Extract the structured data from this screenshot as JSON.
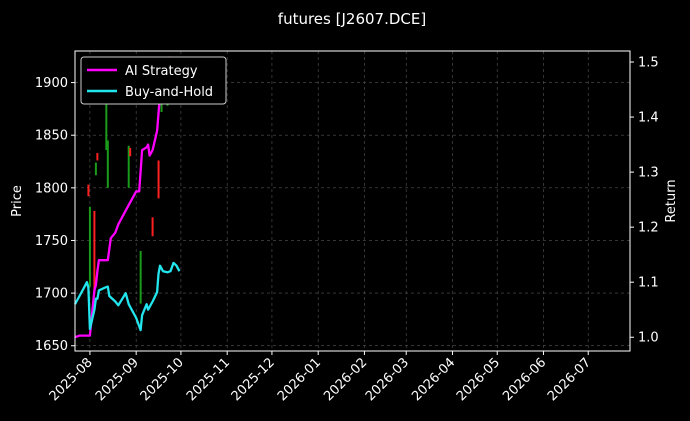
{
  "chart_data": {
    "type": "line",
    "title": "futures [J2607.DCE]",
    "ylabel_left": "Price",
    "ylabel_right": "Return",
    "x_ticks": [
      "2025-08",
      "2025-09",
      "2025-10",
      "2025-11",
      "2025-12",
      "2026-01",
      "2026-02",
      "2026-03",
      "2026-04",
      "2026-05",
      "2026-06",
      "2026-07"
    ],
    "x_range": [
      "2025-07-22",
      "2026-07-29"
    ],
    "y_left_range": [
      1645,
      1930
    ],
    "y_left_ticks": [
      1650,
      1700,
      1750,
      1800,
      1850,
      1900
    ],
    "y_right_range": [
      0.975,
      1.52
    ],
    "y_right_ticks": [
      1.0,
      1.1,
      1.2,
      1.3,
      1.4,
      1.5
    ],
    "grid": true,
    "legend_position": "top-left",
    "colors": {
      "background": "#000000",
      "ai_strategy": "#ff00ff",
      "buy_and_hold": "#22e5ee",
      "candle_up": "#ff2020",
      "candle_down": "#1a9c1a",
      "grid": "#555555"
    },
    "series": [
      {
        "name": "AI Strategy",
        "axis": "right",
        "points": [
          [
            "2025-07-22",
            1.0
          ],
          [
            "2025-07-25",
            1.003
          ],
          [
            "2025-08-01",
            1.003
          ],
          [
            "2025-08-04",
            1.085
          ],
          [
            "2025-08-05",
            1.095
          ],
          [
            "2025-08-06",
            1.12
          ],
          [
            "2025-08-07",
            1.14
          ],
          [
            "2025-08-13",
            1.14
          ],
          [
            "2025-08-14",
            1.16
          ],
          [
            "2025-08-15",
            1.18
          ],
          [
            "2025-08-18",
            1.19
          ],
          [
            "2025-08-20",
            1.205
          ],
          [
            "2025-08-25",
            1.23
          ],
          [
            "2025-08-27",
            1.24
          ],
          [
            "2025-09-01",
            1.265
          ],
          [
            "2025-09-03",
            1.265
          ],
          [
            "2025-09-05",
            1.34
          ],
          [
            "2025-09-08",
            1.345
          ],
          [
            "2025-09-09",
            1.35
          ],
          [
            "2025-09-10",
            1.33
          ],
          [
            "2025-09-12",
            1.34
          ],
          [
            "2025-09-15",
            1.375
          ],
          [
            "2025-09-17",
            1.44
          ],
          [
            "2025-09-19",
            1.48
          ],
          [
            "2025-09-22",
            1.49
          ],
          [
            "2025-09-24",
            1.51
          ]
        ]
      },
      {
        "name": "Buy-and-Hold",
        "axis": "right",
        "points": [
          [
            "2025-07-22",
            1.06
          ],
          [
            "2025-07-25",
            1.075
          ],
          [
            "2025-07-28",
            1.09
          ],
          [
            "2025-07-30",
            1.1
          ],
          [
            "2025-07-31",
            1.09
          ],
          [
            "2025-08-01",
            1.015
          ],
          [
            "2025-08-04",
            1.05
          ],
          [
            "2025-08-05",
            1.07
          ],
          [
            "2025-08-06",
            1.07
          ],
          [
            "2025-08-07",
            1.085
          ],
          [
            "2025-08-11",
            1.09
          ],
          [
            "2025-08-13",
            1.092
          ],
          [
            "2025-08-14",
            1.075
          ],
          [
            "2025-08-18",
            1.065
          ],
          [
            "2025-08-20",
            1.058
          ],
          [
            "2025-08-25",
            1.08
          ],
          [
            "2025-08-27",
            1.06
          ],
          [
            "2025-09-01",
            1.035
          ],
          [
            "2025-09-04",
            1.013
          ],
          [
            "2025-09-05",
            1.04
          ],
          [
            "2025-09-08",
            1.06
          ],
          [
            "2025-09-09",
            1.05
          ],
          [
            "2025-09-11",
            1.06
          ],
          [
            "2025-09-12",
            1.065
          ],
          [
            "2025-09-15",
            1.082
          ],
          [
            "2025-09-16",
            1.115
          ],
          [
            "2025-09-17",
            1.13
          ],
          [
            "2025-09-19",
            1.12
          ],
          [
            "2025-09-22",
            1.118
          ],
          [
            "2025-09-24",
            1.12
          ],
          [
            "2025-09-26",
            1.135
          ],
          [
            "2025-09-28",
            1.13
          ],
          [
            "2025-09-30",
            1.12
          ]
        ]
      }
    ],
    "candles": [
      {
        "date": "2025-07-31",
        "low": 1792,
        "high": 1803,
        "dir": "up"
      },
      {
        "date": "2025-08-01",
        "low": 1706,
        "high": 1782,
        "dir": "down"
      },
      {
        "date": "2025-08-04",
        "low": 1700,
        "high": 1778,
        "dir": "up"
      },
      {
        "date": "2025-08-05",
        "low": 1812,
        "high": 1824,
        "dir": "down"
      },
      {
        "date": "2025-08-06",
        "low": 1826,
        "high": 1833,
        "dir": "up"
      },
      {
        "date": "2025-08-12",
        "low": 1836,
        "high": 1892,
        "dir": "down"
      },
      {
        "date": "2025-08-13",
        "low": 1800,
        "high": 1845,
        "dir": "down"
      },
      {
        "date": "2025-08-27",
        "low": 1800,
        "high": 1840,
        "dir": "down"
      },
      {
        "date": "2025-08-28",
        "low": 1830,
        "high": 1838,
        "dir": "up"
      },
      {
        "date": "2025-09-04",
        "low": 1690,
        "high": 1740,
        "dir": "down"
      },
      {
        "date": "2025-09-12",
        "low": 1754,
        "high": 1772,
        "dir": "up"
      },
      {
        "date": "2025-09-16",
        "low": 1790,
        "high": 1826,
        "dir": "up"
      },
      {
        "date": "2025-09-18",
        "low": 1872,
        "high": 1890,
        "dir": "down"
      },
      {
        "date": "2025-09-22",
        "low": 1878,
        "high": 1885,
        "dir": "down"
      }
    ]
  }
}
